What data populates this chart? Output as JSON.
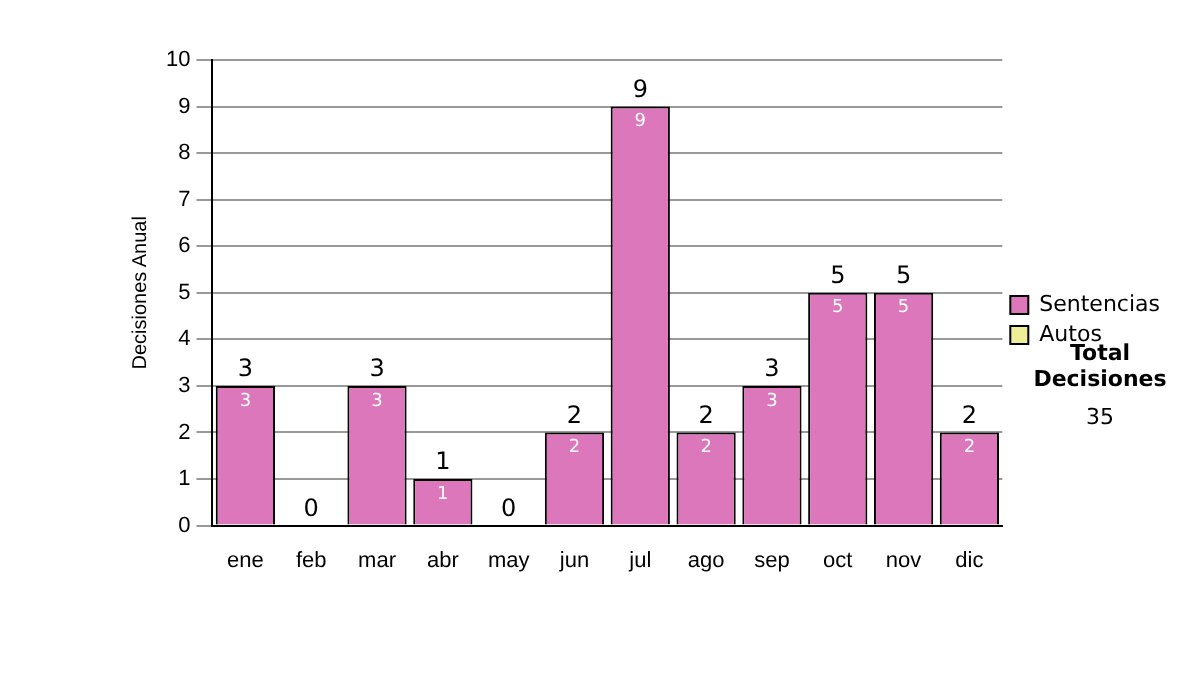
{
  "chart_data": {
    "type": "bar",
    "ylabel": "Decisiones Anual",
    "categories": [
      "ene",
      "feb",
      "mar",
      "abr",
      "may",
      "jun",
      "jul",
      "ago",
      "sep",
      "oct",
      "nov",
      "dic"
    ],
    "series": [
      {
        "name": "Sentencias",
        "color": "#dd77bb",
        "values": [
          3,
          0,
          3,
          1,
          0,
          2,
          9,
          2,
          3,
          5,
          5,
          2
        ],
        "value_labels": [
          "3",
          null,
          "3",
          "1",
          null,
          "2",
          "9",
          "2",
          "3",
          "5",
          "5",
          "2"
        ]
      },
      {
        "name": "Autos",
        "color": "#eeee99",
        "values": [
          0,
          0,
          0,
          0,
          0,
          0,
          0,
          0,
          0,
          0,
          0,
          0
        ]
      }
    ],
    "stacked": true,
    "totals": [
      "3",
      "0",
      "3",
      "1",
      "0",
      "2",
      "9",
      "2",
      "3",
      "5",
      "5",
      "2"
    ],
    "ylim": [
      0,
      10
    ],
    "yticks": [
      0,
      1,
      2,
      3,
      4,
      5,
      6,
      7,
      8,
      9,
      10
    ],
    "grid": "y",
    "legend": "right",
    "annotations": [
      "Total Decisiones",
      "35"
    ]
  }
}
